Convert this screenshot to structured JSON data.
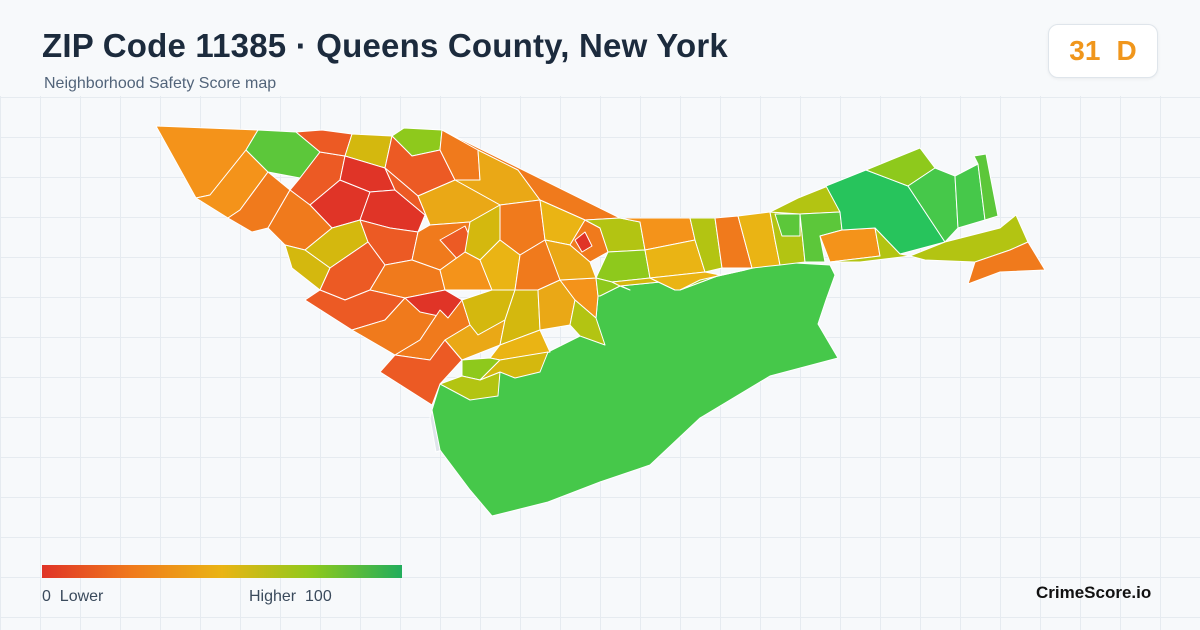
{
  "header": {
    "title": "ZIP Code 11385 · Queens County, New York",
    "subtitle": "Neighborhood Safety Score map"
  },
  "score": {
    "value": "31",
    "grade": "D",
    "color": "#f0961c"
  },
  "map": {
    "tract_fill_palette": [
      "#e03427",
      "#ec5a24",
      "#f07a1c",
      "#f4931a",
      "#eaa816",
      "#d4b80e",
      "#b3c412",
      "#8ec91c",
      "#5cc73a",
      "#46c84a",
      "#27c45c"
    ],
    "tract_border_color": "#ffffff",
    "outside_fill": "#dfe5eb"
  },
  "legend": {
    "low_value": "0",
    "low_label": "Lower",
    "high_label": "Higher",
    "high_value": "100",
    "gradient_colors": [
      "#e03427",
      "#f07a1c",
      "#eab414",
      "#8ec91c",
      "#22ad5c"
    ]
  },
  "footer": {
    "brand": "CrimeScore.io"
  }
}
